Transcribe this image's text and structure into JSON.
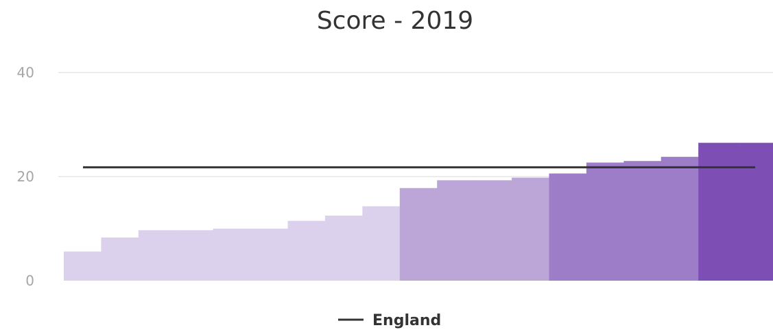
{
  "chart_data": {
    "type": "bar",
    "title": "Score - 2019",
    "xlabel": "",
    "ylabel": "",
    "ylim": [
      0,
      40
    ],
    "yticks": [
      0,
      20,
      40
    ],
    "grid": true,
    "legend_position": "bottom-center",
    "values": [
      5.6,
      8.3,
      9.7,
      9.7,
      10.0,
      10.0,
      11.5,
      12.5,
      14.3,
      17.8,
      19.3,
      19.3,
      19.8,
      20.6,
      22.7,
      23.0,
      23.8,
      26.5,
      26.5
    ],
    "value_colors": [
      "#dcd1ec",
      "#dcd1ec",
      "#dcd1ec",
      "#dcd1ec",
      "#dcd1ec",
      "#dcd1ec",
      "#dcd1ec",
      "#dcd1ec",
      "#dcd1ec",
      "#bca6d8",
      "#bca6d8",
      "#bca6d8",
      "#bca6d8",
      "#9d7cc8",
      "#9d7cc8",
      "#9d7cc8",
      "#9d7cc8",
      "#7d4fb5",
      "#7d4fb5"
    ],
    "reference_line": {
      "name": "England",
      "value": 21.8,
      "color": "#333333"
    }
  }
}
